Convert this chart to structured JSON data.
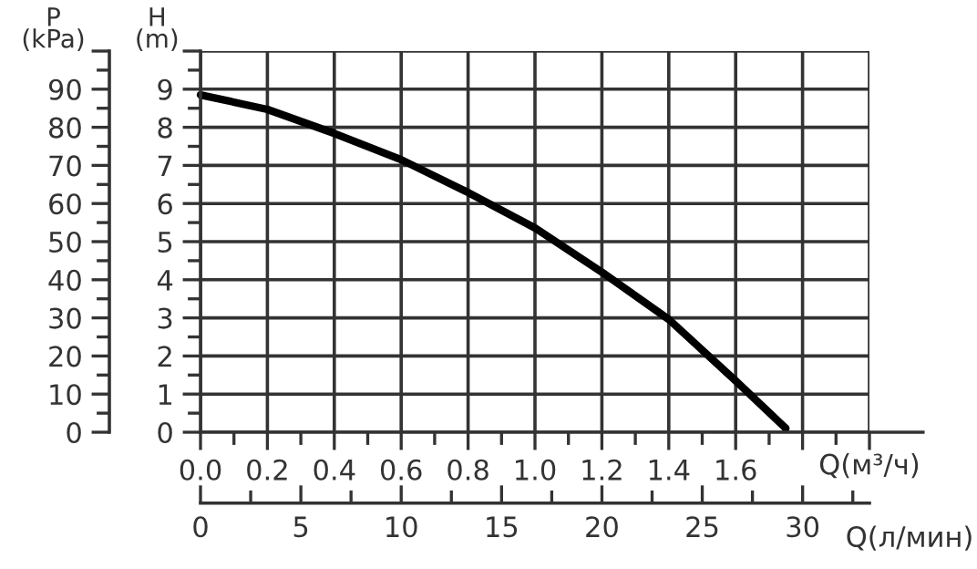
{
  "chart_data": {
    "type": "line",
    "xlabel": "Q(м³/ч)",
    "x2label": "Q(л/мин)",
    "ylabel": "H\n(m)",
    "y2label": "P\n(kPa)",
    "series": [
      {
        "color": "#000000",
        "x": [
          0,
          0.2,
          0.4,
          0.6,
          0.8,
          1.0,
          1.2,
          1.4,
          1.6,
          1.75
        ],
        "values": [
          8.85,
          8.47,
          7.84,
          7.15,
          6.29,
          5.36,
          4.2,
          2.96,
          1.35,
          0.1
        ]
      }
    ],
    "xlim": [
      0,
      2.0
    ],
    "xticks": [
      {
        "value": 0,
        "label": "0.0"
      },
      0.2,
      0.4,
      0.6,
      0.8,
      {
        "value": 1,
        "label": "1.0"
      },
      1.2,
      1.4,
      1.6,
      {
        "value": 1.8,
        "label": null
      },
      {
        "value": 2.0,
        "label": null
      }
    ],
    "ylim": [
      0,
      10
    ],
    "yticks": [
      0,
      1,
      2,
      3,
      4,
      5,
      6,
      7,
      8,
      9,
      {
        "value": 10,
        "label": null
      }
    ],
    "y2lim": [
      0,
      100
    ],
    "y2ticks": [
      0,
      10,
      20,
      30,
      40,
      50,
      60,
      70,
      80,
      90,
      {
        "value": 100,
        "label": null
      }
    ],
    "x2lim": [
      0,
      33.33
    ],
    "x2ticks": [
      0,
      5,
      10,
      15,
      20,
      25,
      30
    ],
    "grid": true,
    "marker": "none",
    "line_style": "solid"
  }
}
